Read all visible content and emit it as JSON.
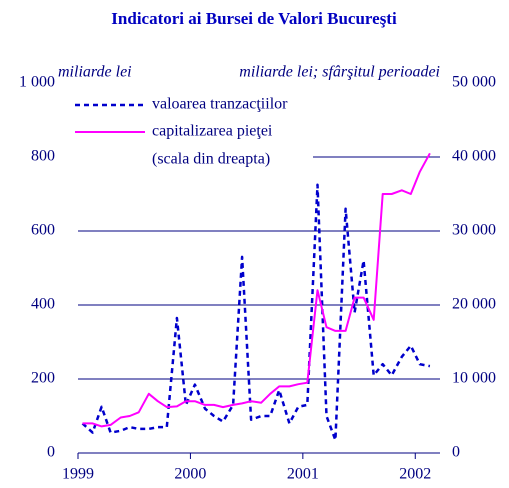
{
  "chart_data": {
    "type": "line",
    "title": "Indicatori ai Bursei de Valori Bucureşti",
    "y_label": "miliarde lei",
    "y2_label": "miliarde lei; sfârşitul perioadei",
    "legend_note": "(scala din dreapta)",
    "x": [
      1999.04,
      1999.13,
      1999.21,
      1999.29,
      1999.38,
      1999.46,
      1999.54,
      1999.63,
      1999.71,
      1999.79,
      1999.88,
      1999.96,
      2000.04,
      2000.13,
      2000.21,
      2000.29,
      2000.38,
      2000.46,
      2000.54,
      2000.63,
      2000.71,
      2000.79,
      2000.88,
      2000.96,
      2001.04,
      2001.13,
      2001.21,
      2001.29,
      2001.38,
      2001.46,
      2001.54,
      2001.63,
      2001.71,
      2001.79,
      2001.88,
      2001.96,
      2002.04,
      2002.13
    ],
    "series": [
      {
        "name": "valoarea tranzacţiilor",
        "color": "#0000cc",
        "dashed": true,
        "values": [
          80,
          55,
          125,
          55,
          60,
          70,
          65,
          65,
          70,
          70,
          365,
          130,
          185,
          120,
          100,
          85,
          130,
          530,
          90,
          100,
          100,
          170,
          80,
          125,
          130,
          725,
          100,
          35,
          660,
          380,
          520,
          210,
          240,
          210,
          260,
          290,
          240,
          235
        ]
      },
      {
        "name": "capitalizarea pieţei",
        "color": "#ff00ff",
        "axis": "y2",
        "values": [
          4000,
          4000,
          3600,
          3800,
          4800,
          5000,
          5500,
          8000,
          7000,
          6200,
          6300,
          7000,
          7000,
          6500,
          6500,
          6200,
          6500,
          6700,
          7000,
          6800,
          8000,
          9000,
          9000,
          9300,
          9500,
          22000,
          17000,
          16500,
          16500,
          21000,
          21000,
          18000,
          35000,
          35000,
          35500,
          35000,
          38000,
          40500
        ]
      }
    ],
    "xlim": [
      1999,
      2002.22
    ],
    "xticks": [
      1999,
      2000,
      2001,
      2002
    ],
    "ylim": [
      0,
      1000
    ],
    "yticks": [
      0,
      200,
      400,
      600,
      800,
      {
        "value": 1000,
        "label": "1 000"
      }
    ],
    "y2lim": [
      0,
      50000
    ],
    "y2ticks": [
      0,
      {
        "value": 10000,
        "label": "10 000"
      },
      {
        "value": 20000,
        "label": "20 000"
      },
      {
        "value": 30000,
        "label": "30 000"
      },
      {
        "value": 40000,
        "label": "40 000"
      },
      {
        "value": 50000,
        "label": "50 000"
      }
    ],
    "grid": true,
    "grid_color": "#000080"
  }
}
